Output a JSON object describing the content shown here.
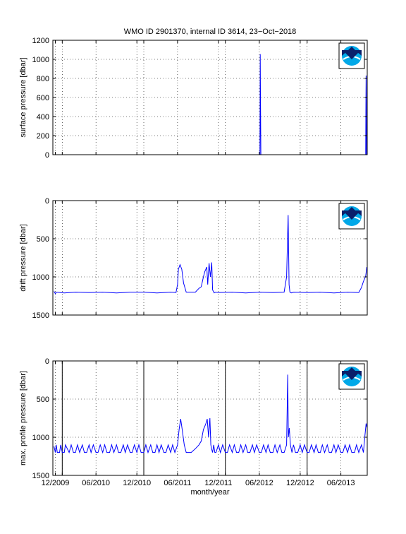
{
  "chart_data": [
    {
      "type": "line",
      "title": "WMO ID 2901370, internal ID 3614, 23−Oct−2018",
      "ylabel": "surface pressure [dbar]",
      "xlabel": "",
      "ylim": [
        0,
        1200
      ],
      "y_reversed": false,
      "yticks": [
        0,
        200,
        400,
        600,
        800,
        1000,
        1200
      ],
      "ytick_labels": [
        "0",
        "200",
        "400",
        "600",
        "800",
        "1000",
        "1200"
      ],
      "grid": true,
      "logo": "noaa-logo",
      "series": [
        {
          "color": "#0000ff",
          "x": [
            "2009-12-01",
            "2010-06-01",
            "2010-12-01",
            "2011-06-01",
            "2011-12-01",
            "2012-03-01",
            "2012-06-04",
            "2012-06-05",
            "2012-06-06",
            "2012-06-08",
            "2012-06-10",
            "2012-12-01",
            "2013-06-01",
            "2013-09-20",
            "2013-09-21",
            "2013-09-22",
            "2013-09-23",
            "2013-09-24",
            "2013-09-25"
          ],
          "values": [
            0,
            0,
            0,
            0,
            0,
            0,
            0,
            1055,
            650,
            0,
            0,
            0,
            0,
            0,
            520,
            830,
            560,
            0,
            0
          ]
        }
      ]
    },
    {
      "type": "line",
      "title": "",
      "ylabel": "drift pressure [dbar]",
      "xlabel": "",
      "ylim": [
        0,
        1500
      ],
      "y_reversed": true,
      "yticks": [
        0,
        500,
        1000,
        1500
      ],
      "ytick_labels": [
        "0",
        "500",
        "1000",
        "1500"
      ],
      "grid": true,
      "logo": "noaa-logo",
      "series": [
        {
          "color": "#0000ff",
          "x": [
            "2009-11-25",
            "2009-12-01",
            "2009-12-05",
            "2010-01-10",
            "2010-03-01",
            "2010-05-01",
            "2010-07-01",
            "2010-09-01",
            "2010-11-01",
            "2011-01-01",
            "2011-03-01",
            "2011-05-01",
            "2011-05-25",
            "2011-06-01",
            "2011-06-05",
            "2011-06-12",
            "2011-06-20",
            "2011-06-28",
            "2011-07-10",
            "2011-08-01",
            "2011-08-20",
            "2011-09-05",
            "2011-09-15",
            "2011-09-25",
            "2011-10-01",
            "2011-10-10",
            "2011-10-14",
            "2011-10-20",
            "2011-10-26",
            "2011-11-01",
            "2011-11-05",
            "2011-11-12",
            "2011-11-18",
            "2011-12-01",
            "2012-02-01",
            "2012-04-01",
            "2012-06-01",
            "2012-08-01",
            "2012-09-20",
            "2012-10-01",
            "2012-10-08",
            "2012-10-12",
            "2012-10-16",
            "2012-10-22",
            "2012-11-01",
            "2013-01-01",
            "2013-03-01",
            "2013-05-01",
            "2013-07-01",
            "2013-08-20",
            "2013-09-01",
            "2013-09-10",
            "2013-09-20",
            "2013-09-25"
          ],
          "values": [
            1190,
            1220,
            1200,
            1210,
            1200,
            1205,
            1200,
            1210,
            1200,
            1200,
            1210,
            1200,
            1205,
            1100,
            900,
            840,
            900,
            1080,
            1200,
            1200,
            1200,
            1150,
            1130,
            1000,
            930,
            870,
            1100,
            820,
            1000,
            810,
            1170,
            1210,
            1200,
            1205,
            1200,
            1210,
            1200,
            1205,
            1200,
            1000,
            190,
            1100,
            1200,
            1210,
            1200,
            1205,
            1200,
            1210,
            1200,
            1205,
            1140,
            1060,
            990,
            870
          ]
        }
      ]
    },
    {
      "type": "line",
      "title": "",
      "ylabel": "max. profile pressure [dbar]",
      "xlabel": "month/year",
      "ylim": [
        0,
        1500
      ],
      "y_reversed": true,
      "yticks": [
        0,
        500,
        1000,
        1500
      ],
      "ytick_labels": [
        "0",
        "500",
        "1000",
        "1500"
      ],
      "x_tick_labels": [
        "12/2009",
        "06/2010",
        "12/2010",
        "06/2011",
        "12/2011",
        "06/2012",
        "12/2012",
        "06/2013"
      ],
      "grid": true,
      "year_lines": [
        "2010-01-01",
        "2011-01-01",
        "2012-01-01",
        "2013-01-01"
      ],
      "logo": "noaa-logo",
      "series": [
        {
          "color": "#0000ff",
          "x": [
            "2009-11-25",
            "2009-12-01",
            "2009-12-05",
            "2009-12-10",
            "2009-12-20",
            "2009-12-25",
            "2010-01-01",
            "2010-01-10",
            "2010-01-15",
            "2010-02-01",
            "2010-02-10",
            "2010-02-20",
            "2010-03-01",
            "2010-03-10",
            "2010-03-20",
            "2010-04-01",
            "2010-04-10",
            "2010-04-20",
            "2010-05-01",
            "2010-05-10",
            "2010-05-20",
            "2010-06-01",
            "2010-06-10",
            "2010-06-20",
            "2010-07-01",
            "2010-07-10",
            "2010-07-20",
            "2010-08-01",
            "2010-08-10",
            "2010-08-20",
            "2010-09-01",
            "2010-09-10",
            "2010-09-20",
            "2010-10-01",
            "2010-10-10",
            "2010-10-20",
            "2010-11-01",
            "2010-11-10",
            "2010-11-20",
            "2010-12-01",
            "2010-12-10",
            "2010-12-20",
            "2011-01-01",
            "2011-01-10",
            "2011-01-20",
            "2011-02-01",
            "2011-02-10",
            "2011-02-20",
            "2011-03-01",
            "2011-03-10",
            "2011-03-20",
            "2011-04-01",
            "2011-04-10",
            "2011-04-20",
            "2011-05-01",
            "2011-05-10",
            "2011-05-20",
            "2011-06-01",
            "2011-06-08",
            "2011-06-15",
            "2011-06-22",
            "2011-07-01",
            "2011-07-10",
            "2011-08-01",
            "2011-08-20",
            "2011-09-05",
            "2011-09-15",
            "2011-09-25",
            "2011-10-05",
            "2011-10-12",
            "2011-10-18",
            "2011-10-24",
            "2011-10-28",
            "2011-11-01",
            "2011-11-05",
            "2011-11-10",
            "2011-11-15",
            "2011-11-20",
            "2011-12-01",
            "2011-12-10",
            "2011-12-20",
            "2012-01-01",
            "2012-01-10",
            "2012-01-20",
            "2012-02-01",
            "2012-02-10",
            "2012-02-20",
            "2012-03-01",
            "2012-03-10",
            "2012-03-20",
            "2012-04-01",
            "2012-04-10",
            "2012-04-20",
            "2012-05-01",
            "2012-05-10",
            "2012-05-20",
            "2012-06-01",
            "2012-06-10",
            "2012-06-20",
            "2012-07-01",
            "2012-07-10",
            "2012-07-20",
            "2012-08-01",
            "2012-08-10",
            "2012-08-20",
            "2012-09-01",
            "2012-09-10",
            "2012-09-20",
            "2012-10-01",
            "2012-10-06",
            "2012-10-09",
            "2012-10-13",
            "2012-10-18",
            "2012-10-25",
            "2012-11-01",
            "2012-11-10",
            "2012-11-20",
            "2012-12-01",
            "2012-12-10",
            "2012-12-20",
            "2013-01-01",
            "2013-01-10",
            "2013-01-20",
            "2013-02-01",
            "2013-02-10",
            "2013-02-20",
            "2013-03-01",
            "2013-03-10",
            "2013-03-20",
            "2013-04-01",
            "2013-04-10",
            "2013-04-20",
            "2013-05-01",
            "2013-05-10",
            "2013-05-20",
            "2013-06-01",
            "2013-06-10",
            "2013-06-20",
            "2013-07-01",
            "2013-07-10",
            "2013-07-20",
            "2013-08-01",
            "2013-08-10",
            "2013-08-20",
            "2013-09-01",
            "2013-09-10",
            "2013-09-16",
            "2013-09-22",
            "2013-09-26"
          ],
          "values": [
            1120,
            1200,
            1100,
            1200,
            1200,
            1100,
            1200,
            1200,
            1100,
            1200,
            1100,
            1200,
            1200,
            1100,
            1200,
            1100,
            1200,
            1200,
            1100,
            1200,
            1100,
            1200,
            1200,
            1100,
            1200,
            1100,
            1200,
            1200,
            1100,
            1200,
            1100,
            1200,
            1200,
            1100,
            1200,
            1100,
            1200,
            1200,
            1100,
            1200,
            1100,
            1200,
            1200,
            1100,
            1200,
            1100,
            1200,
            1200,
            1100,
            1200,
            1100,
            1200,
            1200,
            1100,
            1200,
            1100,
            1200,
            1100,
            900,
            760,
            900,
            1100,
            1200,
            1200,
            1150,
            1100,
            1050,
            900,
            830,
            760,
            1000,
            750,
            1100,
            1160,
            1200,
            1100,
            1200,
            1200,
            1100,
            1200,
            1100,
            1200,
            1200,
            1100,
            1200,
            1100,
            1200,
            1200,
            1100,
            1200,
            1100,
            1200,
            1200,
            1100,
            1200,
            1100,
            1200,
            1200,
            1100,
            1200,
            1100,
            1200,
            1200,
            1100,
            1200,
            1100,
            1200,
            1200,
            1100,
            180,
            1000,
            880,
            1100,
            1200,
            1100,
            1200,
            1200,
            1100,
            1200,
            1100,
            1200,
            1200,
            1100,
            1200,
            1100,
            1200,
            1200,
            1100,
            1200,
            1100,
            1200,
            1200,
            1100,
            1200,
            1100,
            1200,
            1200,
            1100,
            1200,
            1100,
            1200,
            1200,
            1100,
            1200,
            1100,
            1200,
            1000,
            820,
            870
          ]
        }
      ]
    }
  ]
}
